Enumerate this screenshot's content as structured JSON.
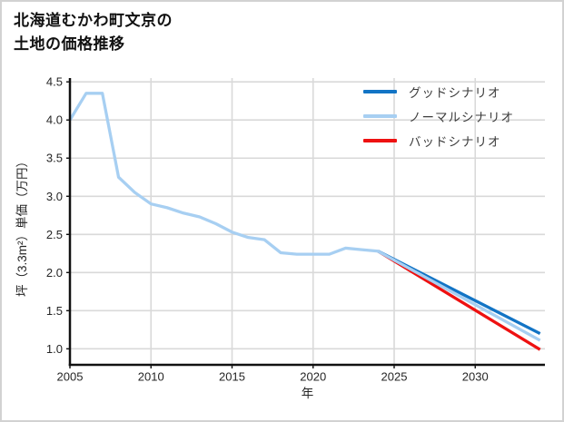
{
  "title": {
    "line1": "北海道むかわ町文京の",
    "line2": "土地の価格推移"
  },
  "legend": {
    "items": [
      {
        "id": "good",
        "label": "グッドシナリオ",
        "color": "#1274c5"
      },
      {
        "id": "normal",
        "label": "ノーマルシナリオ",
        "color": "#a7cff2"
      },
      {
        "id": "bad",
        "label": "バッドシナリオ",
        "color": "#ee1111"
      }
    ]
  },
  "chart_data": {
    "type": "line",
    "title": "北海道むかわ町文京の土地の価格推移",
    "xlabel": "年",
    "ylabel": "坪（3.3m²）単価（万円）",
    "xlim": [
      2005,
      2034.3
    ],
    "ylim": [
      0.79,
      4.55
    ],
    "xticks": [
      2005,
      2010,
      2015,
      2020,
      2025,
      2030
    ],
    "yticks": [
      1.0,
      1.5,
      2.0,
      2.5,
      3.0,
      3.5,
      4.0,
      4.5
    ],
    "grid": true,
    "grid_color": "#d9d9d9",
    "axis_color": "#111111",
    "tick_label_color": "#262626",
    "legend_position": "upper right",
    "series": [
      {
        "id": "bad",
        "name": "バッドシナリオ",
        "color": "#ee1111",
        "x": [
          2024,
          2034
        ],
        "y": [
          2.28,
          0.99
        ]
      },
      {
        "id": "good",
        "name": "グッドシナリオ",
        "color": "#1274c5",
        "x": [
          2024,
          2034
        ],
        "y": [
          2.28,
          1.2
        ]
      },
      {
        "id": "normal",
        "name": "ノーマルシナリオ",
        "color": "#a7cff2",
        "x": [
          2005,
          2006,
          2007,
          2008,
          2009,
          2010,
          2011,
          2012,
          2013,
          2014,
          2015,
          2016,
          2017,
          2018,
          2019,
          2020,
          2021,
          2022,
          2023,
          2024,
          2034
        ],
        "y": [
          4.0,
          4.35,
          4.35,
          3.25,
          3.05,
          2.9,
          2.85,
          2.78,
          2.73,
          2.64,
          2.53,
          2.46,
          2.43,
          2.26,
          2.24,
          2.24,
          2.24,
          2.32,
          2.3,
          2.28,
          1.11
        ]
      }
    ]
  }
}
